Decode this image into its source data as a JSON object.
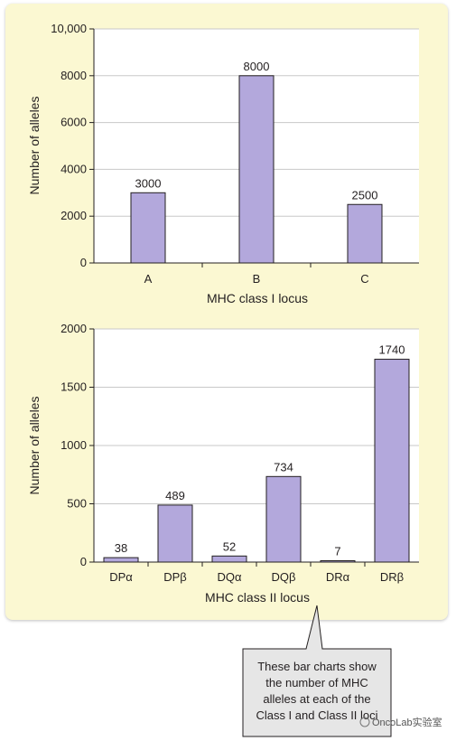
{
  "chart_data": [
    {
      "type": "bar",
      "categories": [
        "A",
        "B",
        "C"
      ],
      "values": [
        3000,
        8000,
        2500
      ],
      "data_labels": [
        "3000",
        "8000",
        "2500"
      ],
      "xlabel": "MHC class I locus",
      "ylabel": "Number of alleles",
      "ylim": [
        0,
        10000
      ],
      "yticks": [
        0,
        2000,
        4000,
        6000,
        8000,
        10000
      ],
      "ytick_labels": [
        "0",
        "2000",
        "4000",
        "6000",
        "8000",
        "10,000"
      ],
      "grid": true,
      "bar_color": "#b3a8dc"
    },
    {
      "type": "bar",
      "categories": [
        "DPα",
        "DPβ",
        "DQα",
        "DQβ",
        "DRα",
        "DRβ"
      ],
      "values": [
        38,
        489,
        52,
        734,
        7,
        1740
      ],
      "data_labels": [
        "38",
        "489",
        "52",
        "734",
        "7",
        "1740"
      ],
      "xlabel": "MHC class II locus",
      "ylabel": "Number of alleles",
      "ylim": [
        0,
        2000
      ],
      "yticks": [
        0,
        500,
        1000,
        1500,
        2000
      ],
      "ytick_labels": [
        "0",
        "500",
        "1000",
        "1500",
        "2000"
      ],
      "grid": true,
      "bar_color": "#b3a8dc"
    }
  ],
  "callout": {
    "lines": [
      "These bar charts show",
      "the number of MHC",
      "alleles at each of the",
      "Class I and Class II loci"
    ]
  },
  "watermark": "OncoLab实验室",
  "colors": {
    "panel_bg": "#fbf8d2",
    "bar": "#b3a8dc",
    "callout_bg": "#e6e6e6"
  }
}
